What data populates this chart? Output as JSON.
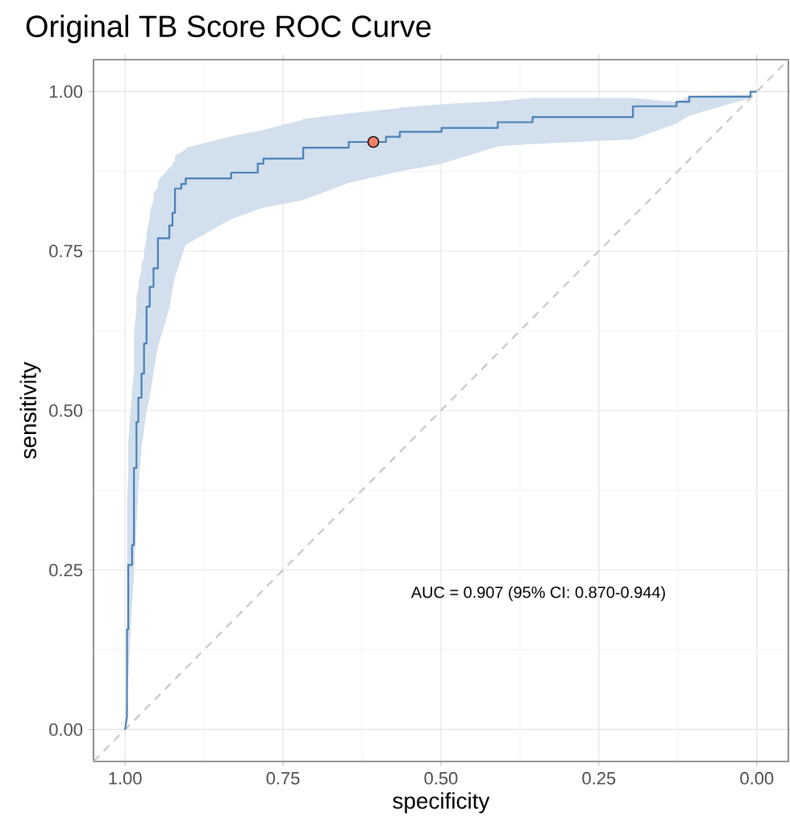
{
  "chart_data": {
    "type": "line",
    "title": "Original TB Score ROC Curve",
    "xlabel": "specificity",
    "ylabel": "sensitivity",
    "annotations": [
      "AUC = 0.907 (95% CI: 0.870-0.944)"
    ],
    "xlim": [
      1.05,
      -0.05
    ],
    "ylim": [
      -0.05,
      1.05
    ],
    "xticks": [
      {
        "value": 1,
        "label": "1.00"
      },
      {
        "value": 0.75,
        "label": "0.75"
      },
      {
        "value": 0.5,
        "label": "0.50"
      },
      {
        "value": 0.25,
        "label": "0.25"
      },
      {
        "value": 0,
        "label": "0.00"
      }
    ],
    "yticks": [
      {
        "value": 0,
        "label": "0.00"
      },
      {
        "value": 0.25,
        "label": "0.25"
      },
      {
        "value": 0.5,
        "label": "0.50"
      },
      {
        "value": 0.75,
        "label": "0.75"
      },
      {
        "value": 1,
        "label": "1.00"
      }
    ],
    "grid": true,
    "series": [
      {
        "color": "#c8c8c8",
        "line_style": "dashed",
        "x": [
          1.05,
          -0.05
        ],
        "values": [
          -0.05,
          1.05
        ]
      },
      {
        "color": "#4a80b5",
        "line_style": "solid",
        "x": [
          1.0,
          0.997,
          0.997,
          0.995,
          0.995,
          0.989,
          0.989,
          0.986,
          0.986,
          0.982,
          0.982,
          0.979,
          0.979,
          0.974,
          0.974,
          0.97,
          0.97,
          0.966,
          0.966,
          0.961,
          0.961,
          0.955,
          0.955,
          0.948,
          0.948,
          0.93,
          0.93,
          0.925,
          0.925,
          0.921,
          0.921,
          0.911,
          0.911,
          0.904,
          0.904,
          0.832,
          0.832,
          0.79,
          0.79,
          0.781,
          0.781,
          0.718,
          0.718,
          0.646,
          0.646,
          0.587,
          0.587,
          0.565,
          0.565,
          0.499,
          0.499,
          0.41,
          0.41,
          0.355,
          0.355,
          0.196,
          0.196,
          0.127,
          0.127,
          0.107,
          0.107,
          0.01,
          0.01,
          0.0
        ],
        "values": [
          0.0,
          0.02,
          0.157,
          0.157,
          0.258,
          0.258,
          0.289,
          0.289,
          0.41,
          0.41,
          0.482,
          0.482,
          0.52,
          0.52,
          0.558,
          0.558,
          0.605,
          0.605,
          0.663,
          0.663,
          0.694,
          0.694,
          0.723,
          0.723,
          0.77,
          0.77,
          0.79,
          0.79,
          0.81,
          0.81,
          0.848,
          0.848,
          0.855,
          0.855,
          0.864,
          0.864,
          0.873,
          0.873,
          0.887,
          0.887,
          0.895,
          0.895,
          0.912,
          0.912,
          0.921,
          0.921,
          0.929,
          0.929,
          0.937,
          0.937,
          0.943,
          0.943,
          0.952,
          0.952,
          0.96,
          0.96,
          0.977,
          0.977,
          0.984,
          0.984,
          0.992,
          0.992,
          1.0,
          1.0
        ],
        "lower": [
          0.0,
          0.02,
          0.05,
          0.08,
          0.08,
          0.2,
          0.2,
          0.24,
          0.24,
          0.32,
          0.32,
          0.38,
          0.38,
          0.44,
          0.44,
          0.47,
          0.47,
          0.5,
          0.5,
          0.52,
          0.52,
          0.56,
          0.56,
          0.6,
          0.6,
          0.66,
          0.66,
          0.69,
          0.69,
          0.71,
          0.71,
          0.74,
          0.74,
          0.76,
          0.76,
          0.8,
          0.8,
          0.815,
          0.815,
          0.818,
          0.818,
          0.83,
          0.83,
          0.857,
          0.857,
          0.87,
          0.87,
          0.875,
          0.875,
          0.887,
          0.887,
          0.914,
          0.914,
          0.918,
          0.918,
          0.925,
          0.925,
          0.95,
          0.95,
          0.962,
          0.962,
          0.99,
          1.0,
          1.0
        ],
        "upper": [
          0.0,
          0.1,
          0.35,
          0.4,
          0.45,
          0.53,
          0.53,
          0.56,
          0.62,
          0.66,
          0.68,
          0.69,
          0.7,
          0.72,
          0.73,
          0.74,
          0.75,
          0.77,
          0.78,
          0.8,
          0.81,
          0.83,
          0.84,
          0.85,
          0.86,
          0.88,
          0.88,
          0.885,
          0.89,
          0.89,
          0.9,
          0.905,
          0.905,
          0.91,
          0.912,
          0.93,
          0.93,
          0.938,
          0.938,
          0.94,
          0.94,
          0.956,
          0.957,
          0.966,
          0.966,
          0.972,
          0.972,
          0.974,
          0.975,
          0.98,
          0.98,
          0.985,
          0.985,
          0.99,
          0.99,
          0.99,
          0.99,
          0.984,
          0.984,
          0.992,
          0.992,
          0.995,
          1.0,
          1.0
        ]
      },
      {
        "type": "scatter",
        "color": "#f08068",
        "marker": "circle",
        "x": [
          0.607
        ],
        "values": [
          0.921
        ]
      }
    ]
  }
}
